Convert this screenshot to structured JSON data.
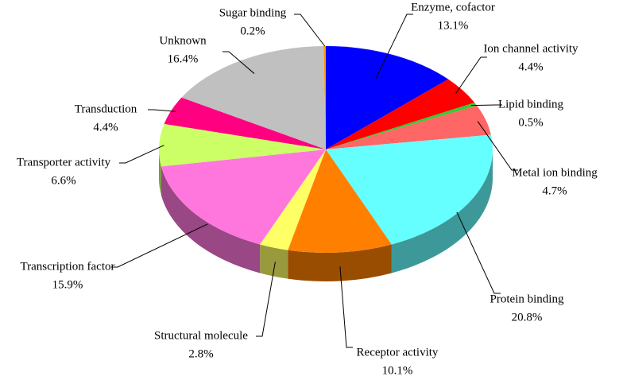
{
  "chart_data": {
    "type": "pie3d",
    "categories": [
      "Enzyme, cofactor",
      "Ion channel activity",
      "Lipid binding",
      "Metal ion binding",
      "Protein binding",
      "Receptor activity",
      "Structural molecule",
      "Transcription factor",
      "Transporter activity",
      "Transduction",
      "Unknown",
      "Sugar binding"
    ],
    "values": [
      13.1,
      4.4,
      0.5,
      4.7,
      20.8,
      10.1,
      2.8,
      15.9,
      6.6,
      4.4,
      16.4,
      0.2
    ],
    "value_labels": [
      "13.1%",
      "4.4%",
      "0.5%",
      "4.7%",
      "20.8%",
      "10.1%",
      "2.8%",
      "15.9%",
      "6.6%",
      "4.4%",
      "16.4%",
      "0.2%"
    ],
    "colors": [
      "#0000ff",
      "#ff0000",
      "#33cc33",
      "#ff6666",
      "#66ffff",
      "#ff8000",
      "#ffff66",
      "#ff77dd",
      "#ccff66",
      "#ff0080",
      "#c0c0c0",
      "#ff9900"
    ]
  }
}
